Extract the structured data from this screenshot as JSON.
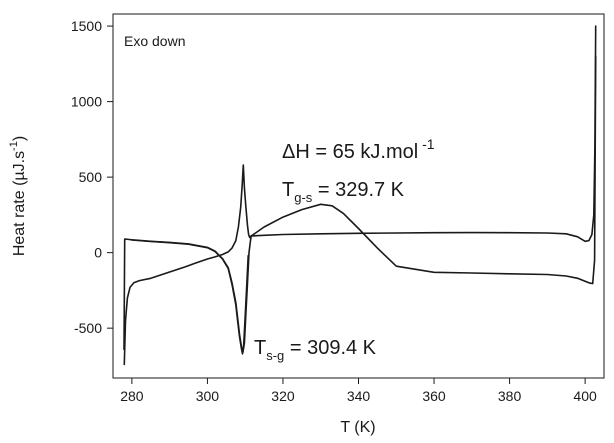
{
  "chart_data": {
    "type": "line",
    "title": "",
    "xlabel": "T (K)",
    "ylabel_main": "Heat rate (µJ.s",
    "ylabel_sup": "-1",
    "ylabel_close": ")",
    "xlim": [
      275,
      405
    ],
    "ylim": [
      -830,
      1580
    ],
    "x_ticks": [
      280,
      300,
      320,
      340,
      360,
      380,
      400
    ],
    "y_ticks": [
      -500,
      0,
      500,
      1000,
      1500
    ],
    "grid": false,
    "legend": "none",
    "line_color": "#1a1a1a",
    "annotations": {
      "exo": "Exo down",
      "dh_main": "ΔH = 65 kJ.mol",
      "dh_sup": " -1",
      "tgs_T": "T",
      "tgs_sub": "g-s",
      "tgs_val": " = 329.7 K",
      "tsg_T": "T",
      "tsg_sub": "s-g",
      "tsg_val": " = 309.4 K"
    },
    "series": [
      {
        "x": [
          278.0,
          278.3,
          278.8,
          279.5,
          280.5,
          282,
          285,
          288,
          291,
          294,
          297,
          300,
          302,
          304,
          305.5,
          306.5,
          307.5,
          308.2,
          308.8,
          309.2,
          309.5,
          309.8,
          310.2,
          310.6,
          310.9,
          311.2,
          311.5,
          315,
          320,
          330,
          340,
          350,
          360,
          370,
          380,
          390,
          395,
          398,
          400,
          401,
          401.8,
          402.3,
          402.6,
          402.8
        ],
        "y": [
          -740,
          -450,
          -300,
          -230,
          -200,
          -185,
          -170,
          -145,
          -120,
          -95,
          -68,
          -42,
          -28,
          -12,
          5,
          30,
          80,
          170,
          300,
          450,
          580,
          430,
          300,
          180,
          120,
          100,
          110,
          115,
          120,
          125,
          128,
          130,
          132,
          133,
          132,
          130,
          125,
          105,
          75,
          80,
          120,
          250,
          700,
          1500
        ]
      },
      {
        "x": [
          277.9,
          278.1,
          280,
          285,
          290,
          295,
          300,
          302,
          304,
          305.5,
          306.5,
          307.5,
          308,
          308.5,
          309,
          309.4,
          309.8,
          310.2,
          310.6,
          311.0,
          311.3,
          311.6,
          315,
          320,
          325,
          330,
          333,
          336,
          340,
          345,
          350,
          360,
          370,
          380,
          390,
          395,
          398,
          400,
          401,
          402,
          402.5,
          402.8
        ],
        "y": [
          -640,
          90,
          85,
          75,
          68,
          58,
          35,
          10,
          -40,
          -100,
          -200,
          -330,
          -430,
          -540,
          -620,
          -660,
          -600,
          -400,
          -200,
          0,
          60,
          110,
          170,
          235,
          285,
          320,
          310,
          260,
          160,
          30,
          -90,
          -130,
          -135,
          -140,
          -145,
          -155,
          -170,
          -190,
          -200,
          -205,
          -50,
          1300
        ]
      },
      {
        "x": [
          280,
          285,
          290,
          295,
          300,
          302,
          304,
          305.5,
          306.5,
          307.5,
          308,
          308.5,
          309,
          309.3,
          309.6,
          310,
          310.4,
          310.8
        ],
        "y": [
          84,
          74,
          66,
          56,
          33,
          8,
          -42,
          -105,
          -210,
          -345,
          -450,
          -555,
          -635,
          -670,
          -610,
          -420,
          -220,
          -20
        ]
      }
    ]
  }
}
